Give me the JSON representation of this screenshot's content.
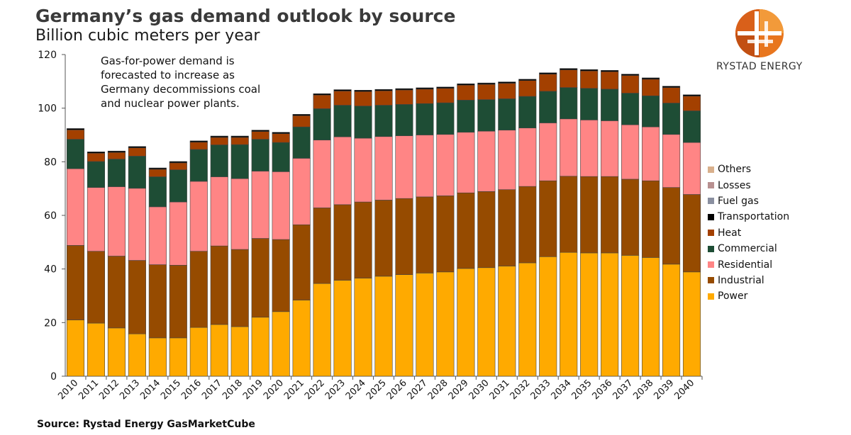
{
  "title": "Germany’s gas demand outlook by source",
  "subtitle": "Billion cubic meters per year",
  "annotation": "Gas-for-power demand is forecasted to increase as Germany decommissions coal and nuclear power plants.",
  "source": "Source: Rystad Energy GasMarketCube",
  "brand": "RYSTAD ENERGY",
  "chart_data": {
    "type": "bar",
    "stacked": true,
    "title": "Germany’s gas demand outlook by source",
    "subtitle": "Billion cubic meters per year",
    "ylabel": "",
    "xlabel": "",
    "ylim": [
      0,
      120
    ],
    "yticks": [
      "0",
      "20",
      "40",
      "60",
      "80",
      "100",
      "120"
    ],
    "legend_position": "right",
    "grid": false,
    "categories": [
      "2010",
      "2011",
      "2012",
      "2013",
      "2014",
      "2015",
      "2016",
      "2017",
      "2018",
      "2019",
      "2020",
      "2021",
      "2022",
      "2023",
      "2024",
      "2025",
      "2026",
      "2027",
      "2028",
      "2029",
      "2030",
      "2031",
      "2032",
      "2033",
      "2034",
      "2035",
      "2036",
      "2037",
      "2038",
      "2039",
      "2040"
    ],
    "series": [
      {
        "name": "Power",
        "color": "#FFAA00",
        "values": [
          21.0,
          19.8,
          18.0,
          15.8,
          14.3,
          14.3,
          18.2,
          19.3,
          18.5,
          22.0,
          24.1,
          28.4,
          34.6,
          35.8,
          36.6,
          37.3,
          37.9,
          38.5,
          38.9,
          40.2,
          40.5,
          41.1,
          42.3,
          44.6,
          46.2,
          46.0,
          46.0,
          45.1,
          44.3,
          41.8,
          38.9
        ]
      },
      {
        "name": "Industrial",
        "color": "#964B00",
        "values": [
          27.8,
          26.8,
          26.8,
          27.4,
          27.3,
          27.1,
          28.4,
          29.3,
          28.8,
          29.4,
          26.9,
          28.1,
          28.2,
          28.2,
          28.4,
          28.4,
          28.4,
          28.4,
          28.4,
          28.2,
          28.4,
          28.5,
          28.5,
          28.3,
          28.4,
          28.5,
          28.5,
          28.4,
          28.6,
          28.6,
          28.9
        ]
      },
      {
        "name": "Residential",
        "color": "#FF8585",
        "values": [
          28.6,
          23.8,
          25.9,
          26.9,
          21.6,
          23.6,
          26.1,
          25.8,
          26.4,
          25.1,
          25.3,
          24.8,
          25.3,
          25.3,
          23.8,
          23.7,
          23.4,
          23.1,
          22.9,
          22.6,
          22.5,
          22.2,
          21.8,
          21.6,
          21.4,
          21.1,
          20.8,
          20.3,
          20.1,
          19.8,
          19.4
        ]
      },
      {
        "name": "Commercial",
        "color": "#1E4D35",
        "values": [
          11.0,
          9.7,
          10.3,
          12.0,
          11.2,
          12.0,
          11.9,
          11.9,
          12.7,
          11.9,
          10.9,
          11.7,
          11.7,
          11.8,
          12.0,
          11.7,
          11.7,
          11.7,
          11.8,
          12.0,
          11.8,
          11.7,
          11.8,
          11.8,
          11.7,
          11.8,
          11.8,
          11.8,
          11.6,
          11.7,
          11.8
        ]
      },
      {
        "name": "Heat",
        "color": "#A34000",
        "values": [
          3.5,
          3.1,
          2.5,
          3.1,
          2.8,
          2.6,
          2.7,
          2.8,
          2.7,
          2.9,
          3.3,
          4.2,
          5.1,
          5.3,
          5.4,
          5.4,
          5.4,
          5.4,
          5.4,
          5.6,
          5.7,
          5.8,
          5.9,
          6.4,
          6.6,
          6.5,
          6.5,
          6.6,
          6.2,
          5.8,
          5.5
        ]
      },
      {
        "name": "Transportation",
        "color": "#000000",
        "values": [
          0.5,
          0.5,
          0.5,
          0.5,
          0.5,
          0.5,
          0.5,
          0.5,
          0.5,
          0.5,
          0.5,
          0.5,
          0.5,
          0.5,
          0.5,
          0.5,
          0.5,
          0.5,
          0.5,
          0.5,
          0.5,
          0.5,
          0.5,
          0.5,
          0.5,
          0.5,
          0.5,
          0.5,
          0.5,
          0.5,
          0.5
        ]
      },
      {
        "name": "Fuel gas",
        "color": "#8A8FA0",
        "values": [
          0,
          0,
          0,
          0,
          0,
          0,
          0,
          0,
          0,
          0,
          0,
          0,
          0,
          0,
          0,
          0,
          0,
          0,
          0,
          0,
          0,
          0,
          0,
          0,
          0,
          0,
          0,
          0,
          0,
          0,
          0
        ]
      },
      {
        "name": "Losses",
        "color": "#B89090",
        "values": [
          0,
          0,
          0,
          0,
          0,
          0,
          0,
          0,
          0,
          0,
          0,
          0,
          0,
          0,
          0,
          0,
          0,
          0,
          0,
          0,
          0,
          0,
          0,
          0,
          0,
          0,
          0,
          0,
          0,
          0,
          0
        ]
      },
      {
        "name": "Others",
        "color": "#D9B08C",
        "values": [
          0,
          0,
          0,
          0,
          0,
          0,
          0,
          0,
          0,
          0,
          0,
          0,
          0,
          0,
          0,
          0,
          0,
          0,
          0,
          0,
          0,
          0,
          0,
          0,
          0,
          0,
          0,
          0,
          0,
          0,
          0
        ]
      }
    ]
  },
  "legend_order": [
    "Others",
    "Losses",
    "Fuel gas",
    "Transportation",
    "Heat",
    "Commercial",
    "Residential",
    "Industrial",
    "Power"
  ]
}
